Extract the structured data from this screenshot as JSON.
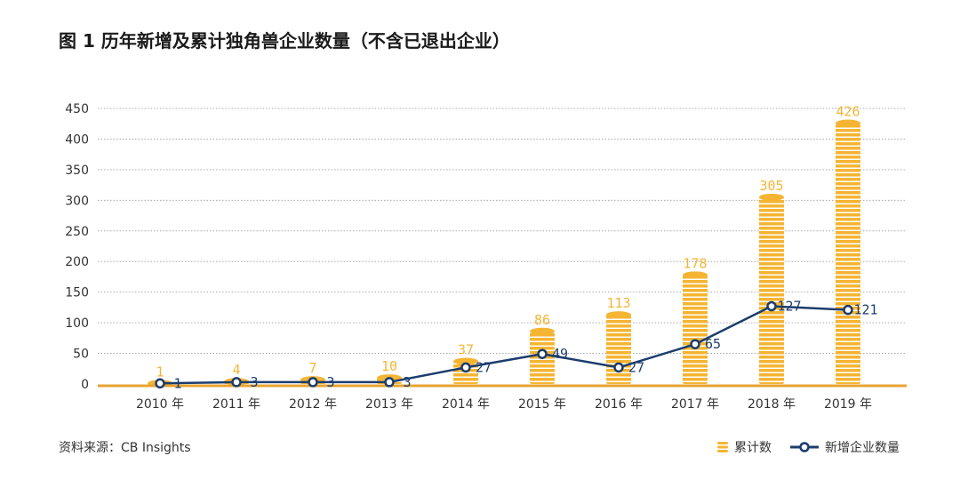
{
  "title": "图 1  历年新增及累计独角兽企业数量（不含已退出企业）",
  "source": "资料来源：CB Insights",
  "colors": {
    "bar": "#F5B533",
    "bar_stripe": "#FFFFFF",
    "line": "#1B3D6D",
    "grid": "#AAAAAA",
    "axis": "#E8A431",
    "bar_label": "#F5B533",
    "line_label": "#1B3D6D"
  },
  "chart_data": {
    "type": "bar",
    "categories": [
      "2010 年",
      "2011 年",
      "2012 年",
      "2013 年",
      "2014 年",
      "2015 年",
      "2016 年",
      "2017 年",
      "2018 年",
      "2019 年"
    ],
    "series": [
      {
        "name": "累计数",
        "type": "bar",
        "values": [
          1,
          4,
          7,
          10,
          37,
          86,
          113,
          178,
          305,
          426
        ]
      },
      {
        "name": "新增企业数量",
        "type": "line",
        "values": [
          1,
          3,
          3,
          3,
          27,
          49,
          27,
          65,
          127,
          121
        ]
      }
    ],
    "yticks": [
      "0",
      "50",
      "100",
      "150",
      "200",
      "250",
      "300",
      "350",
      "400",
      "450"
    ],
    "ylim": [
      0,
      450
    ],
    "grid": true,
    "legend": "bottom-right"
  }
}
